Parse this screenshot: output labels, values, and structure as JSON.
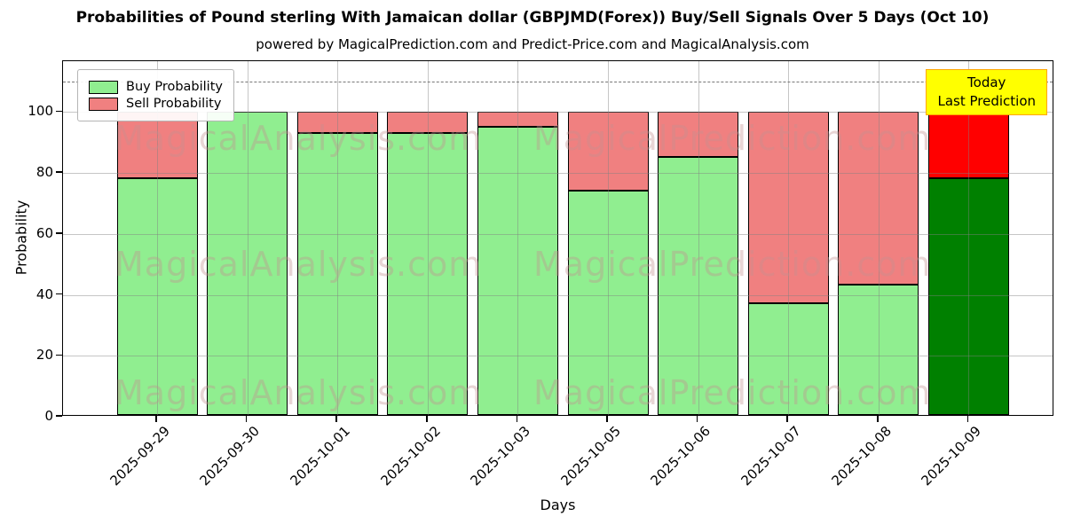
{
  "chart_data": {
    "type": "bar",
    "stacked": true,
    "title": "Probabilities of Pound sterling With Jamaican dollar (GBPJMD(Forex)) Buy/Sell Signals Over 5 Days (Oct 10)",
    "subtitle": "powered by MagicalPrediction.com and Predict-Price.com and MagicalAnalysis.com",
    "xlabel": "Days",
    "ylabel": "Probability",
    "categories": [
      "2025-09-29",
      "2025-09-30",
      "2025-10-01",
      "2025-10-02",
      "2025-10-03",
      "2025-10-05",
      "2025-10-06",
      "2025-10-07",
      "2025-10-08",
      "2025-10-09"
    ],
    "series": [
      {
        "name": "Buy Probability",
        "color": "#90EE90",
        "values": [
          78,
          100,
          93,
          93,
          95,
          74,
          85,
          37,
          43,
          78
        ]
      },
      {
        "name": "Sell Probability",
        "color": "#F08080",
        "values": [
          22,
          0,
          7,
          7,
          5,
          26,
          15,
          63,
          57,
          22
        ]
      }
    ],
    "today_bar": {
      "index": 9,
      "buy_color": "#008000",
      "sell_color": "#FF0000"
    },
    "annotation": {
      "line1": "Today",
      "line2": "Last Prediction",
      "bg": "#FFFF00",
      "border": "#FFA500"
    },
    "reference_line": {
      "y": 110,
      "style": "dashed",
      "color": "#777777"
    },
    "yticks": [
      0,
      20,
      40,
      60,
      80,
      100
    ],
    "ylim": [
      0,
      116.7
    ],
    "grid": true,
    "legend_position": "upper-left",
    "bar_edge_color": "#000000",
    "watermarks": {
      "left_text": "MagicalAnalysis.com",
      "right_text": "MagicalPrediction.com"
    }
  }
}
